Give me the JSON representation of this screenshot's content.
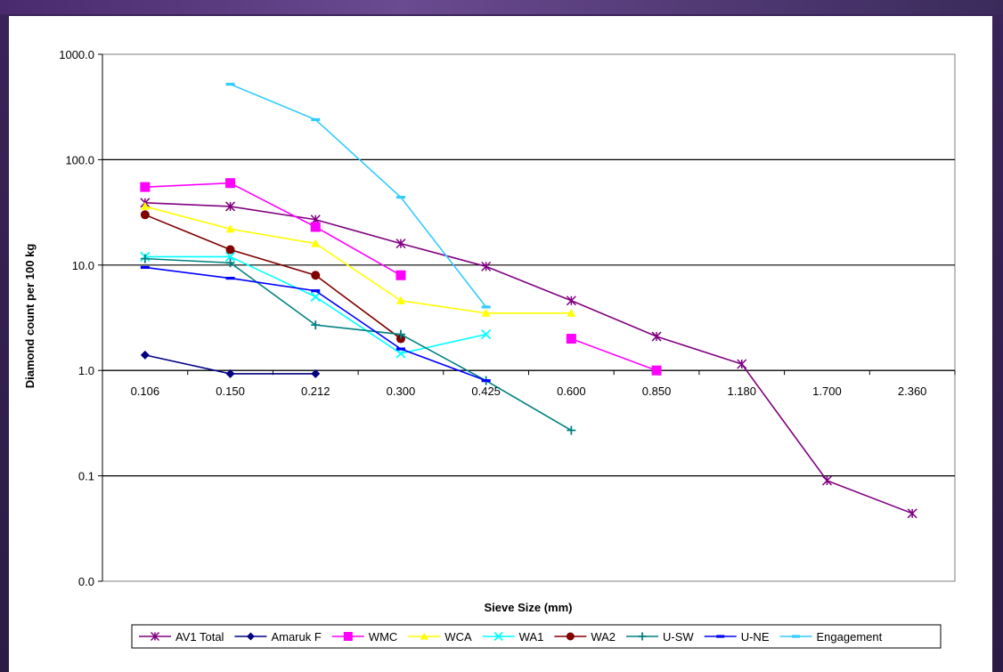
{
  "chart_data": {
    "type": "line",
    "title": "",
    "xlabel": "Sieve Size (mm)",
    "ylabel": "Diamond count per 100 kg",
    "yscale": "log",
    "ylim": [
      0.01,
      1000
    ],
    "y_tick_labels": [
      "1000.0",
      "100.0",
      "10.0",
      "1.0",
      "0.1",
      "0.0"
    ],
    "y_tick_values": [
      1000,
      100,
      10,
      1,
      0.1,
      0.01
    ],
    "categories": [
      "0.106",
      "0.150",
      "0.212",
      "0.300",
      "0.425",
      "0.600",
      "0.850",
      "1.180",
      "1.700",
      "2.360"
    ],
    "x_axis_crosses_at": 1,
    "grid": "horizontal",
    "legend_position": "bottom",
    "series": [
      {
        "name": "AV1 Total",
        "color": "#800080",
        "marker": "star",
        "values": [
          39,
          36,
          27,
          16,
          9.7,
          4.6,
          2.1,
          1.15,
          0.09,
          0.044
        ]
      },
      {
        "name": "Amaruk F",
        "color": "#000080",
        "marker": "diamond",
        "values": [
          1.4,
          0.93,
          0.93,
          null,
          null,
          null,
          null,
          null,
          null,
          null
        ]
      },
      {
        "name": "WMC",
        "color": "#ff00ff",
        "marker": "square",
        "values": [
          55,
          60,
          23,
          8,
          null,
          2,
          1,
          null,
          null,
          null
        ]
      },
      {
        "name": "WCA",
        "color": "#ffff00",
        "marker": "triangle",
        "values": [
          36,
          22,
          16,
          4.6,
          3.5,
          3.5,
          null,
          null,
          null,
          null
        ]
      },
      {
        "name": "WA1",
        "color": "#00ffff",
        "marker": "x",
        "values": [
          12,
          12,
          5,
          1.45,
          2.2,
          null,
          null,
          null,
          null,
          null
        ]
      },
      {
        "name": "WA2",
        "color": "#800000",
        "marker": "circle",
        "values": [
          30,
          14,
          8,
          2,
          null,
          null,
          null,
          null,
          null,
          null
        ]
      },
      {
        "name": "U-SW",
        "color": "#008080",
        "marker": "plus",
        "values": [
          11.5,
          10.5,
          2.7,
          2.2,
          0.8,
          0.27,
          null,
          null,
          null,
          null
        ]
      },
      {
        "name": "U-NE",
        "color": "#0000ff",
        "marker": "dash",
        "values": [
          9.5,
          7.5,
          5.7,
          1.6,
          0.8,
          null,
          null,
          null,
          null,
          null
        ]
      },
      {
        "name": "Engagement",
        "color": "#33ccff",
        "marker": "dash",
        "values": [
          null,
          520,
          240,
          44,
          4,
          null,
          null,
          null,
          null,
          null
        ]
      }
    ]
  }
}
